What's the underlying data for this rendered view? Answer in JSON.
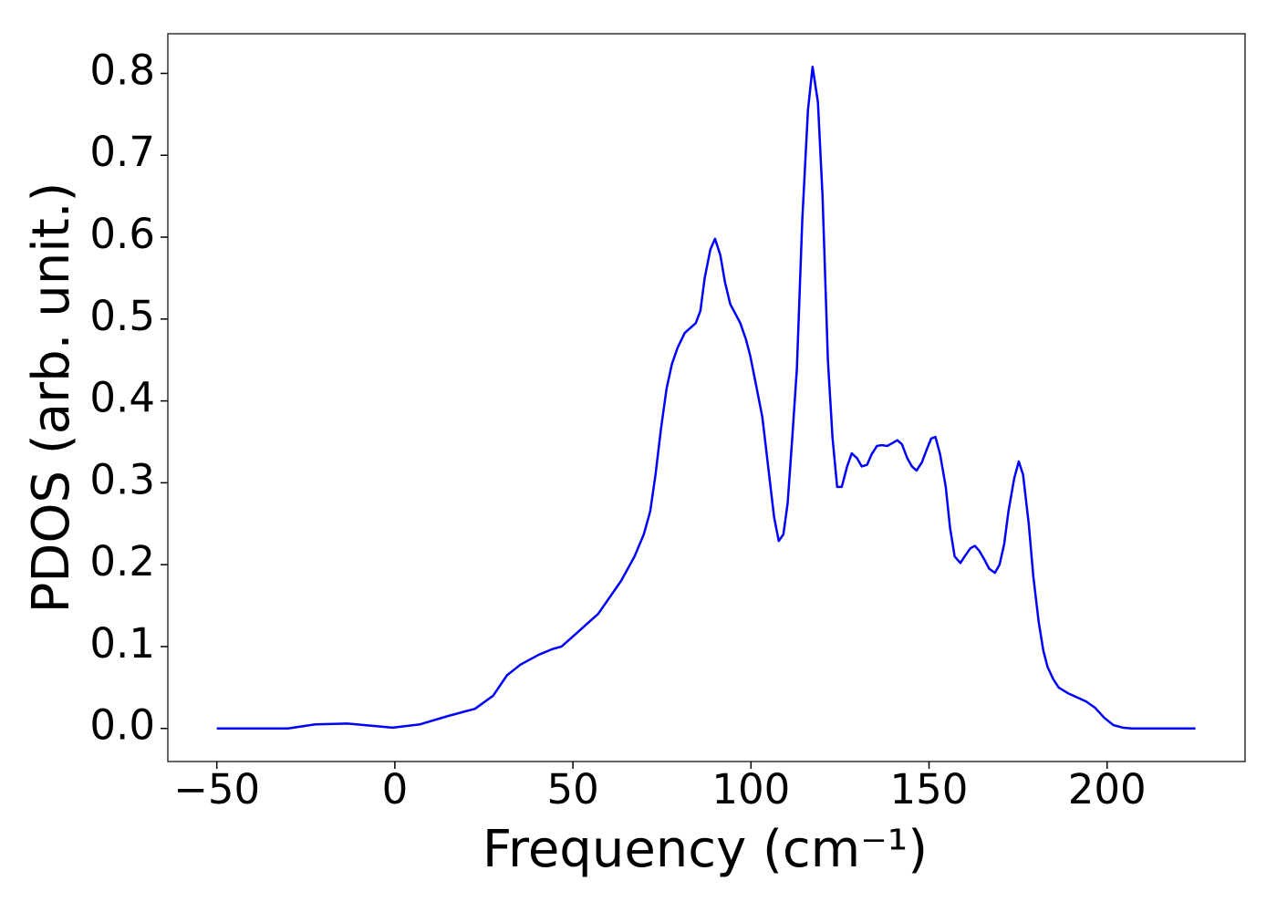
{
  "chart_data": {
    "type": "line",
    "xlabel": "Frequency (cm⁻¹)",
    "ylabel": "PDOS (arb. unit.)",
    "x": [
      -50,
      -30,
      -22.3,
      -13.4,
      -0.6,
      7.1,
      14.8,
      22.5,
      27.6,
      31.5,
      35.3,
      40.4,
      44.3,
      46.8,
      50.7,
      57.1,
      63.5,
      67.3,
      69.9,
      71.7,
      73.2,
      74.7,
      76.3,
      77.8,
      79.4,
      81.4,
      84.5,
      85.8,
      87,
      88.6,
      89.9,
      91.4,
      92.7,
      94.2,
      95.8,
      97,
      98.6,
      99.8,
      101.4,
      103.2,
      106.5,
      107.8,
      109.1,
      110.3,
      111.6,
      112.9,
      114.4,
      116,
      117.3,
      118.8,
      120.1,
      121.6,
      122.9,
      124.2,
      125.5,
      127,
      128.3,
      129.8,
      131.1,
      132.6,
      133.9,
      135.4,
      136.7,
      138.3,
      139.5,
      141.1,
      142.4,
      143.9,
      145.2,
      146.5,
      148,
      149.3,
      150.6,
      151.8,
      153.1,
      154.7,
      155.9,
      157.2,
      158.8,
      160,
      161.6,
      162.9,
      164.1,
      165.7,
      166.9,
      168.5,
      169.8,
      171.1,
      172.3,
      173.9,
      175.2,
      176.4,
      178,
      179.3,
      180.8,
      182.1,
      183.3,
      184.9,
      186.4,
      189,
      194.1,
      196.7,
      199.2,
      201.8,
      204.4,
      206.9,
      224.8
    ],
    "series": [
      {
        "color": "#0000ff",
        "values": [
          0,
          0,
          0.005,
          0.006,
          0.001,
          0.005,
          0.015,
          0.024,
          0.04,
          0.065,
          0.078,
          0.09,
          0.097,
          0.1,
          0.115,
          0.14,
          0.18,
          0.21,
          0.237,
          0.265,
          0.31,
          0.365,
          0.415,
          0.445,
          0.465,
          0.483,
          0.495,
          0.51,
          0.55,
          0.585,
          0.598,
          0.578,
          0.545,
          0.518,
          0.505,
          0.495,
          0.475,
          0.455,
          0.42,
          0.38,
          0.258,
          0.229,
          0.237,
          0.275,
          0.355,
          0.44,
          0.62,
          0.755,
          0.808,
          0.765,
          0.65,
          0.45,
          0.355,
          0.295,
          0.295,
          0.32,
          0.336,
          0.33,
          0.32,
          0.322,
          0.335,
          0.345,
          0.346,
          0.345,
          0.348,
          0.352,
          0.347,
          0.33,
          0.32,
          0.315,
          0.325,
          0.34,
          0.354,
          0.356,
          0.335,
          0.295,
          0.245,
          0.21,
          0.202,
          0.21,
          0.22,
          0.223,
          0.217,
          0.205,
          0.195,
          0.19,
          0.2,
          0.225,
          0.265,
          0.305,
          0.326,
          0.31,
          0.25,
          0.185,
          0.13,
          0.095,
          0.075,
          0.06,
          0.05,
          0.043,
          0.033,
          0.025,
          0.013,
          0.004,
          0.001,
          0,
          0
        ]
      }
    ],
    "xlim": [
      -63.75,
      238.75
    ],
    "ylim": [
      -0.0404,
      0.8484
    ],
    "xticks": [
      {
        "value": -50,
        "label": "−50"
      },
      0,
      50,
      100,
      150,
      200
    ],
    "yticks": [
      {
        "value": 0,
        "label": "0.0"
      },
      0.1,
      0.2,
      0.3,
      0.4,
      0.5,
      0.6,
      0.7,
      0.8
    ]
  }
}
